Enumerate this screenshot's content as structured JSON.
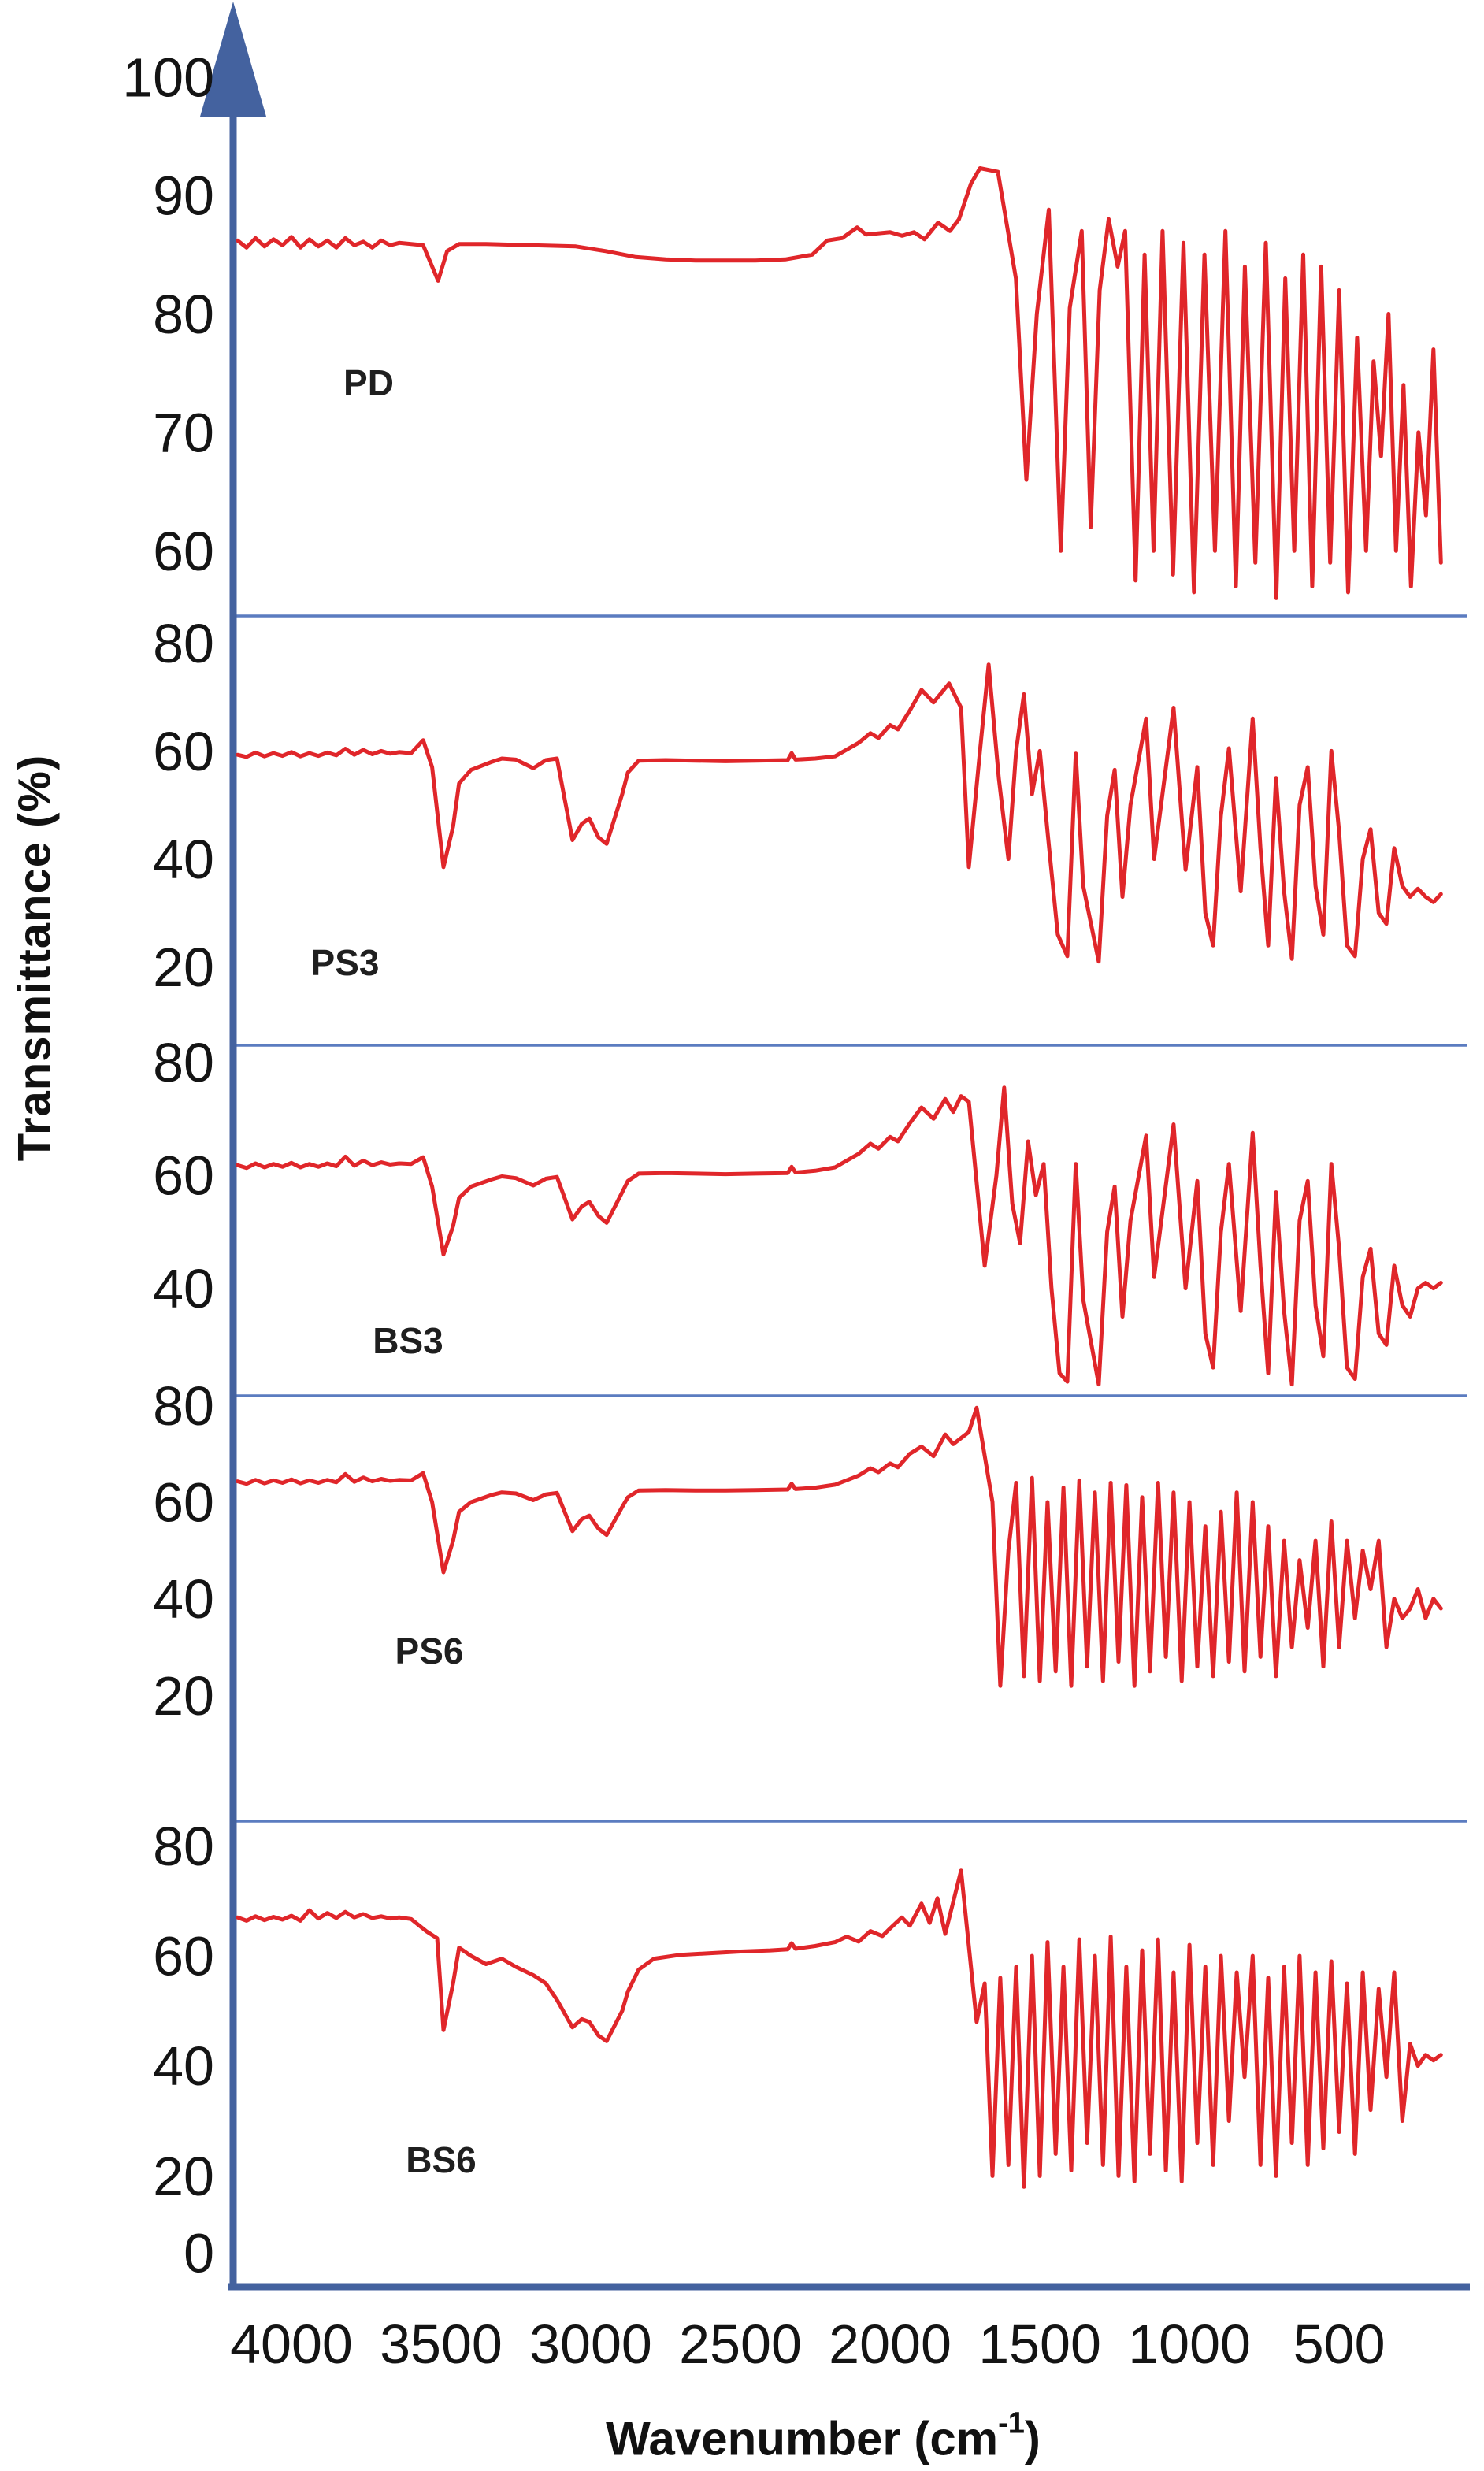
{
  "figure": {
    "ylabel": "Transmittance (%)",
    "xlabel_prefix": "Wavenumber (cm",
    "xlabel_superscript": "-1",
    "xlabel_suffix": ")"
  },
  "colors": {
    "curve_red": "#e0262a",
    "axis_blue": "#44629f",
    "separator_blue": "#5b7cc0",
    "tick_text": "#141414",
    "sample_label_text": "#1f1f1f"
  },
  "axis": {
    "x_range": [
      4192,
      74
    ],
    "x_ticks": [
      {
        "label": "4000",
        "value": 4000
      },
      {
        "label": "3500",
        "value": 3500
      },
      {
        "label": "3000",
        "value": 3000
      },
      {
        "label": "2500",
        "value": 2500
      },
      {
        "label": "2000",
        "value": 2000
      },
      {
        "label": "1500",
        "value": 1500
      },
      {
        "label": "1000",
        "value": 1000
      },
      {
        "label": "500",
        "value": 500
      }
    ]
  },
  "chart_data": [
    {
      "type": "line",
      "label": "PD",
      "ylim": [
        54.5,
        106.5
      ],
      "y_ticks": [
        100,
        90,
        80,
        70,
        60
      ],
      "x": [
        4180,
        4150,
        4120,
        4090,
        4060,
        4030,
        4000,
        3970,
        3940,
        3910,
        3880,
        3850,
        3820,
        3790,
        3760,
        3730,
        3700,
        3670,
        3640,
        3600,
        3560,
        3510,
        3480,
        3440,
        3350,
        3200,
        3050,
        2950,
        2850,
        2750,
        2650,
        2550,
        2450,
        2350,
        2260,
        2210,
        2160,
        2110,
        2080,
        2040,
        2000,
        1960,
        1920,
        1885,
        1840,
        1800,
        1770,
        1730,
        1700,
        1640,
        1580,
        1545,
        1510,
        1470,
        1430,
        1400,
        1360,
        1330,
        1300,
        1270,
        1240,
        1215,
        1180,
        1150,
        1120,
        1090,
        1055,
        1020,
        985,
        950,
        915,
        880,
        845,
        815,
        780,
        745,
        710,
        680,
        650,
        620,
        590,
        560,
        530,
        500,
        470,
        440,
        410,
        385,
        360,
        335,
        310,
        285,
        260,
        235,
        210,
        185,
        160
      ],
      "y": [
        86.2,
        85.6,
        86.4,
        85.7,
        86.3,
        85.8,
        86.5,
        85.6,
        86.3,
        85.7,
        86.2,
        85.6,
        86.4,
        85.8,
        86.1,
        85.6,
        86.2,
        85.8,
        86.0,
        85.9,
        85.8,
        82.8,
        85.3,
        85.9,
        85.9,
        85.8,
        85.7,
        85.3,
        84.8,
        84.6,
        84.5,
        84.5,
        84.5,
        84.6,
        85.0,
        86.2,
        86.4,
        87.3,
        86.7,
        86.8,
        86.9,
        86.6,
        86.9,
        86.3,
        87.7,
        87.0,
        88.0,
        91.0,
        92.3,
        92.0,
        83.0,
        66.0,
        80.0,
        88.8,
        60.0,
        80.5,
        87.0,
        62.0,
        82.0,
        88.0,
        84.0,
        87.0,
        57.5,
        85.0,
        60.0,
        87.0,
        58.0,
        86.0,
        56.5,
        85.0,
        60.0,
        87.0,
        57.0,
        84.0,
        59.0,
        86.0,
        56.0,
        83.0,
        60.0,
        85.0,
        57.0,
        84.0,
        59.0,
        82.0,
        56.5,
        78.0,
        60.0,
        76.0,
        68.0,
        80.0,
        60.0,
        74.0,
        57.0,
        70.0,
        63.0,
        77.0,
        59.0
      ]
    },
    {
      "type": "line",
      "label": "PS3",
      "ylim": [
        5.5,
        85
      ],
      "y_ticks": [
        80,
        60,
        40,
        20
      ],
      "x": [
        4180,
        4150,
        4120,
        4090,
        4060,
        4030,
        4000,
        3970,
        3940,
        3910,
        3880,
        3850,
        3820,
        3790,
        3760,
        3730,
        3700,
        3670,
        3640,
        3600,
        3560,
        3530,
        3492,
        3460,
        3440,
        3400,
        3330,
        3297,
        3250,
        3192,
        3150,
        3113,
        3061,
        3030,
        3005,
        2974,
        2947,
        2895,
        2876,
        2840,
        2750,
        2650,
        2550,
        2450,
        2342,
        2329,
        2316,
        2250,
        2184,
        2105,
        2066,
        2039,
        2000,
        1974,
        1934,
        1895,
        1855,
        1803,
        1763,
        1737,
        1700,
        1671,
        1637,
        1605,
        1579,
        1553,
        1526,
        1500,
        1474,
        1440,
        1408,
        1380,
        1355,
        1303,
        1275,
        1250,
        1224,
        1197,
        1145,
        1118,
        1053,
        1013,
        974,
        947,
        921,
        895,
        868,
        829,
        789,
        763,
        737,
        711,
        684,
        658,
        632,
        605,
        579,
        553,
        526,
        500,
        474,
        447,
        421,
        395,
        368,
        342,
        316,
        289,
        263,
        237,
        211,
        185,
        160
      ],
      "y": [
        59.3,
        58.9,
        59.7,
        59.0,
        59.6,
        59.1,
        59.8,
        59.0,
        59.6,
        59.1,
        59.7,
        59.2,
        60.4,
        59.3,
        60.2,
        59.4,
        60.0,
        59.5,
        59.8,
        59.6,
        62.0,
        57.0,
        38.5,
        46.0,
        54.0,
        56.5,
        58.0,
        58.6,
        58.4,
        56.8,
        58.3,
        58.6,
        43.5,
        46.5,
        47.5,
        44.0,
        42.8,
        52.0,
        56.0,
        58.2,
        58.3,
        58.2,
        58.1,
        58.2,
        58.3,
        59.6,
        58.4,
        58.6,
        59.0,
        61.5,
        63.3,
        62.4,
        64.8,
        64.0,
        67.5,
        71.3,
        69.0,
        72.5,
        68.0,
        38.5,
        60.0,
        76.0,
        55.0,
        40.0,
        60.0,
        70.5,
        52.0,
        60.0,
        45.0,
        26.0,
        22.0,
        59.5,
        35.0,
        21.0,
        48.0,
        56.5,
        33.0,
        50.0,
        66.0,
        40.0,
        68.0,
        38.0,
        57.0,
        30.0,
        24.0,
        48.0,
        60.5,
        34.0,
        66.0,
        42.0,
        24.0,
        55.0,
        34.0,
        21.5,
        50.0,
        57.0,
        35.0,
        26.0,
        60.0,
        45.0,
        24.0,
        22.0,
        40.0,
        45.5,
        30.0,
        28.0,
        42.0,
        35.0,
        33.0,
        34.5,
        33.0,
        32.0,
        33.5
      ]
    },
    {
      "type": "line",
      "label": "BS3",
      "ylim": [
        21,
        83
      ],
      "y_ticks": [
        80,
        60,
        40
      ],
      "x": [
        4180,
        4150,
        4120,
        4090,
        4060,
        4030,
        4000,
        3970,
        3940,
        3910,
        3880,
        3850,
        3820,
        3790,
        3760,
        3730,
        3700,
        3670,
        3640,
        3600,
        3560,
        3530,
        3492,
        3460,
        3440,
        3400,
        3330,
        3297,
        3250,
        3192,
        3150,
        3113,
        3061,
        3030,
        3005,
        2974,
        2947,
        2895,
        2876,
        2840,
        2750,
        2650,
        2550,
        2450,
        2342,
        2329,
        2316,
        2250,
        2184,
        2105,
        2066,
        2039,
        2000,
        1974,
        1934,
        1895,
        1855,
        1816,
        1789,
        1763,
        1737,
        1684,
        1645,
        1619,
        1592,
        1566,
        1539,
        1513,
        1487,
        1461,
        1434,
        1408,
        1380,
        1355,
        1303,
        1275,
        1250,
        1224,
        1197,
        1145,
        1118,
        1053,
        1013,
        974,
        947,
        921,
        895,
        868,
        829,
        789,
        763,
        737,
        711,
        684,
        658,
        632,
        605,
        579,
        553,
        526,
        500,
        474,
        447,
        421,
        395,
        368,
        342,
        316,
        289,
        263,
        237,
        211,
        185,
        160
      ],
      "y": [
        61.8,
        61.3,
        62.1,
        61.4,
        62.0,
        61.5,
        62.2,
        61.4,
        62.0,
        61.5,
        62.1,
        61.6,
        63.3,
        61.7,
        62.6,
        61.8,
        62.3,
        61.9,
        62.1,
        62.0,
        63.2,
        58.0,
        46.0,
        51.0,
        56.0,
        58.0,
        59.3,
        59.8,
        59.5,
        58.2,
        59.4,
        59.7,
        52.2,
        54.5,
        55.3,
        52.8,
        51.6,
        57.0,
        59.0,
        60.3,
        60.4,
        60.3,
        60.2,
        60.3,
        60.4,
        61.5,
        60.5,
        60.8,
        61.4,
        63.8,
        65.6,
        64.7,
        66.8,
        66.0,
        69.2,
        72.0,
        70.0,
        73.5,
        71.2,
        74.0,
        73.0,
        44.0,
        60.0,
        75.5,
        55.0,
        48.0,
        66.0,
        56.5,
        62.0,
        40.0,
        25.0,
        23.5,
        62.0,
        38.0,
        23.0,
        50.0,
        58.0,
        35.0,
        52.0,
        67.0,
        42.0,
        69.0,
        40.0,
        59.0,
        32.0,
        26.0,
        50.0,
        62.0,
        36.0,
        67.5,
        44.0,
        25.0,
        57.0,
        36.0,
        23.0,
        52.0,
        59.0,
        37.0,
        28.0,
        62.0,
        47.0,
        26.0,
        24.0,
        42.0,
        47.0,
        32.0,
        30.0,
        44.0,
        37.0,
        35.0,
        40.0,
        41.0,
        40.0,
        41.0
      ]
    },
    {
      "type": "line",
      "label": "PS6",
      "ylim": [
        -6,
        82
      ],
      "y_ticks": [
        80,
        60,
        40,
        20
      ],
      "x": [
        4180,
        4150,
        4120,
        4090,
        4060,
        4030,
        4000,
        3970,
        3940,
        3910,
        3880,
        3850,
        3820,
        3790,
        3760,
        3730,
        3700,
        3670,
        3640,
        3600,
        3560,
        3530,
        3492,
        3460,
        3440,
        3400,
        3330,
        3297,
        3250,
        3192,
        3150,
        3113,
        3061,
        3030,
        3005,
        2974,
        2947,
        2895,
        2876,
        2840,
        2750,
        2650,
        2550,
        2450,
        2342,
        2329,
        2316,
        2250,
        2184,
        2105,
        2066,
        2039,
        2000,
        1974,
        1934,
        1895,
        1855,
        1816,
        1789,
        1737,
        1711,
        1658,
        1632,
        1605,
        1579,
        1553,
        1526,
        1500,
        1474,
        1447,
        1421,
        1395,
        1368,
        1342,
        1316,
        1289,
        1263,
        1237,
        1211,
        1184,
        1158,
        1132,
        1105,
        1079,
        1053,
        1026,
        1000,
        974,
        947,
        921,
        895,
        868,
        842,
        816,
        789,
        763,
        737,
        711,
        684,
        658,
        632,
        605,
        579,
        553,
        526,
        500,
        474,
        447,
        421,
        395,
        368,
        342,
        316,
        289,
        263,
        237,
        211,
        185,
        160
      ],
      "y": [
        64.3,
        63.8,
        64.6,
        63.9,
        64.5,
        64.0,
        64.7,
        63.9,
        64.5,
        64.0,
        64.6,
        64.1,
        65.8,
        64.2,
        65.1,
        64.3,
        64.8,
        64.4,
        64.6,
        64.5,
        66.0,
        60.0,
        45.5,
        52.0,
        58.0,
        60.0,
        61.5,
        62.0,
        61.8,
        60.4,
        61.6,
        61.9,
        54.0,
        56.5,
        57.2,
        54.5,
        53.2,
        59.0,
        61.0,
        62.4,
        62.5,
        62.4,
        62.4,
        62.5,
        62.6,
        63.8,
        62.7,
        63.0,
        63.6,
        65.5,
        67.0,
        66.2,
        68.0,
        67.2,
        70.0,
        71.5,
        69.5,
        74.0,
        72.0,
        74.5,
        79.5,
        60.0,
        22.0,
        50.0,
        64.0,
        24.0,
        65.0,
        23.0,
        60.0,
        25.0,
        63.0,
        22.0,
        64.5,
        26.0,
        62.0,
        23.0,
        64.0,
        27.0,
        63.5,
        22.0,
        61.0,
        25.0,
        64.0,
        28.0,
        62.0,
        23.0,
        60.0,
        26.0,
        55.0,
        24.0,
        58.0,
        27.0,
        62.0,
        25.0,
        60.0,
        28.0,
        55.0,
        24.0,
        52.0,
        30.0,
        48.0,
        34.0,
        52.0,
        26.0,
        56.0,
        30.0,
        52.0,
        36.0,
        50.0,
        42.0,
        52.0,
        30.0,
        40.0,
        36.0,
        38.0,
        42.0,
        36.0,
        40.0,
        38.0
      ]
    },
    {
      "type": "line",
      "label": "BS6",
      "ylim": [
        0,
        84.5
      ],
      "y_ticks": [
        80,
        60,
        40,
        20,
        0
      ],
      "x": [
        4180,
        4150,
        4120,
        4090,
        4060,
        4030,
        4000,
        3970,
        3940,
        3910,
        3880,
        3850,
        3820,
        3790,
        3760,
        3730,
        3700,
        3670,
        3640,
        3600,
        3550,
        3513,
        3492,
        3460,
        3440,
        3400,
        3350,
        3297,
        3250,
        3192,
        3150,
        3113,
        3061,
        3030,
        3005,
        2974,
        2947,
        2895,
        2876,
        2840,
        2789,
        2700,
        2600,
        2500,
        2400,
        2342,
        2329,
        2316,
        2250,
        2184,
        2145,
        2105,
        2066,
        2026,
        2000,
        1961,
        1934,
        1895,
        1868,
        1842,
        1816,
        1763,
        1711,
        1684,
        1658,
        1632,
        1605,
        1579,
        1553,
        1526,
        1500,
        1474,
        1447,
        1421,
        1395,
        1368,
        1342,
        1316,
        1289,
        1263,
        1237,
        1211,
        1184,
        1158,
        1132,
        1105,
        1079,
        1053,
        1026,
        1000,
        974,
        947,
        921,
        895,
        868,
        842,
        816,
        789,
        763,
        737,
        711,
        684,
        658,
        632,
        605,
        579,
        553,
        526,
        500,
        474,
        447,
        421,
        395,
        368,
        342,
        316,
        289,
        263,
        237,
        211,
        185,
        160
      ],
      "y": [
        67.0,
        66.4,
        67.2,
        66.5,
        67.1,
        66.6,
        67.3,
        66.4,
        68.3,
        66.8,
        67.8,
        66.9,
        68.0,
        67.0,
        67.6,
        66.9,
        67.2,
        66.8,
        67.0,
        66.7,
        64.5,
        63.2,
        46.5,
        55.0,
        61.5,
        60.0,
        58.5,
        59.5,
        58.0,
        56.5,
        55.0,
        52.0,
        47.0,
        48.5,
        48.0,
        45.5,
        44.5,
        50.0,
        53.5,
        57.5,
        59.5,
        60.2,
        60.5,
        60.8,
        61.0,
        61.2,
        62.3,
        61.3,
        61.8,
        62.5,
        63.5,
        62.6,
        64.5,
        63.6,
        65.0,
        67.0,
        65.5,
        69.5,
        66.0,
        70.5,
        64.0,
        75.5,
        48.0,
        55.0,
        20.0,
        56.0,
        22.0,
        58.0,
        18.0,
        60.0,
        20.0,
        62.5,
        24.0,
        58.0,
        21.0,
        63.0,
        26.0,
        60.0,
        22.0,
        63.5,
        20.0,
        58.0,
        19.0,
        61.0,
        24.0,
        63.0,
        21.0,
        57.0,
        19.0,
        62.0,
        26.0,
        58.0,
        22.0,
        60.0,
        30.0,
        57.0,
        38.0,
        60.0,
        22.0,
        56.0,
        20.0,
        58.0,
        26.0,
        60.0,
        22.0,
        57.0,
        25.0,
        59.0,
        28.0,
        55.0,
        24.0,
        57.0,
        32.0,
        54.0,
        38.0,
        57.0,
        30.0,
        44.0,
        40.0,
        42.0,
        41.0,
        42.0
      ]
    }
  ]
}
